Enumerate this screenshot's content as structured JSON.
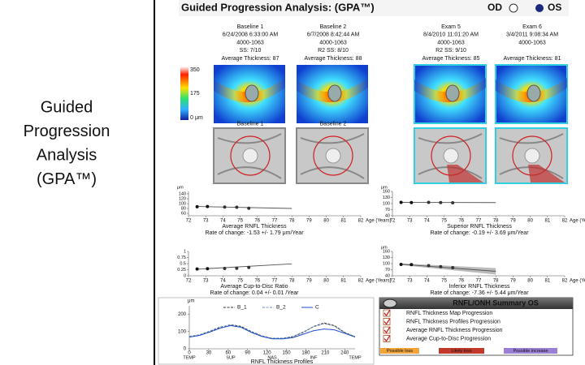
{
  "slide_title": [
    "Guided",
    "Progression",
    "Analysis",
    "(GPA™)"
  ],
  "report": {
    "title": "Guided Progression Analysis: (GPA™)",
    "eye_od": "OD",
    "eye_os": "OS",
    "exams": [
      {
        "label": "Baseline 1",
        "date": "6/24/2008 6:33:00 AM",
        "code": "4000-1063",
        "ss": "SS: 7/10",
        "avg": "Average Thickness: 87"
      },
      {
        "label": "Baseline 2",
        "date": "6/7/2008 8:42:44 AM",
        "code": "4000-1063",
        "ss": "R2  SS: 8/10",
        "avg": "Average Thickness: 88"
      },
      {
        "label": "Exam 5",
        "date": "8/4/2010 11:01:20 AM",
        "code": "4000-1063",
        "ss": "R2  SS: 9/10",
        "avg": "Average Thickness: 85"
      },
      {
        "label": "Exam 6",
        "date": "3/4/2011 9:08:34 AM",
        "code": "4000-1063",
        "avg": "Average Thickness: 81"
      }
    ],
    "scale_labels": [
      "350",
      "175",
      "0",
      "μm"
    ],
    "heatmap_captions": [
      "Baseline 1",
      "Baseline 2"
    ],
    "trends": [
      {
        "title": "Average RNFL Thickness",
        "rate": "Rate of change: -1.53 +/- 1.79 μm/Year",
        "yunit": "μm",
        "ylim": [
          50,
          150
        ],
        "yticks": [
          60,
          80,
          100,
          120,
          140
        ],
        "xlim": [
          72,
          82
        ],
        "xticks": [
          72,
          73,
          74,
          75,
          76,
          77,
          78,
          79,
          80,
          81,
          82
        ],
        "xlabel": "Age (Years)",
        "x": [
          72.5,
          73.1,
          74.1,
          74.8,
          75.5
        ],
        "values": [
          87,
          88,
          86,
          85,
          81
        ],
        "fit_x": [
          72.5,
          78
        ],
        "fit_values": [
          88,
          80
        ]
      },
      {
        "title": "Superior RNFL Thickness",
        "rate": "Rate of change: -0.19 +/- 3.69 μm/Year",
        "yunit": "μm",
        "ylim": [
          40,
          160
        ],
        "yticks": [
          40,
          70,
          100,
          130,
          160
        ],
        "xlim": [
          72,
          82
        ],
        "xticks": [
          72,
          73,
          74,
          75,
          76,
          77,
          78,
          79,
          80,
          81,
          82
        ],
        "xlabel": "Age (Years)",
        "x": [
          72.5,
          73.1,
          74.1,
          74.8,
          75.5
        ],
        "values": [
          106,
          105,
          106,
          105,
          104
        ],
        "fit_x": [
          72.5,
          78
        ],
        "fit_values": [
          106,
          105
        ]
      },
      {
        "title": "Average Cup-to-Disc Ratio",
        "rate": "Rate of change: 0.04 +/- 0.01 /Year",
        "ylim": [
          0,
          1
        ],
        "yticks": [
          0,
          0.25,
          0.5,
          0.75,
          1
        ],
        "xlim": [
          72,
          82
        ],
        "xticks": [
          72,
          73,
          74,
          75,
          76,
          77,
          78,
          79,
          80,
          81,
          82
        ],
        "xlabel": "Age (Years)",
        "x": [
          72.5,
          73.1,
          74.1,
          74.8,
          75.5
        ],
        "values": [
          0.28,
          0.29,
          0.3,
          0.31,
          0.34
        ],
        "fit_x": [
          72.5,
          78
        ],
        "fit_values": [
          0.27,
          0.49
        ]
      },
      {
        "title": "Inferior RNFL Thickness",
        "rate": "Rate of change: -7.36 +/- 5.44 μm/Year",
        "yunit": "μm",
        "ylim": [
          40,
          160
        ],
        "yticks": [
          40,
          70,
          100,
          130,
          160
        ],
        "xlim": [
          72,
          82
        ],
        "xticks": [
          72,
          73,
          74,
          75,
          76,
          77,
          78,
          79,
          80,
          81,
          82
        ],
        "xlabel": "Age (Years)",
        "x": [
          72.5,
          73.1,
          74.1,
          74.8,
          75.5
        ],
        "values": [
          96,
          95,
          90,
          85,
          80
        ],
        "fit_x": [
          72.5,
          78
        ],
        "fit_values": [
          97,
          62
        ]
      }
    ],
    "profile": {
      "title": "RNFL Thickness Profiles",
      "yunit": "μm",
      "ylim": [
        0,
        250
      ],
      "yticks": [
        0,
        100,
        200
      ],
      "xlim": [
        0,
        256
      ],
      "xticks": [
        0,
        30,
        60,
        90,
        120,
        150,
        180,
        210,
        240
      ],
      "region_ticks": [
        {
          "value": 0,
          "label": "TEMP"
        },
        {
          "value": 64,
          "label": "SUP"
        },
        {
          "value": 128,
          "label": "NAS"
        },
        {
          "value": 192,
          "label": "INF"
        },
        {
          "value": 256,
          "label": "TEMP"
        }
      ],
      "x": [
        0,
        16,
        32,
        48,
        64,
        80,
        96,
        112,
        128,
        144,
        160,
        176,
        192,
        208,
        224,
        240,
        256
      ],
      "series": [
        {
          "name": "B_1",
          "color": "#333333",
          "values": [
            70,
            80,
            100,
            125,
            140,
            130,
            100,
            75,
            60,
            60,
            70,
            95,
            130,
            150,
            135,
            95,
            70
          ]
        },
        {
          "name": "B_2",
          "color": "#6f8fb0",
          "values": [
            72,
            82,
            104,
            128,
            138,
            126,
            98,
            74,
            62,
            62,
            72,
            98,
            128,
            146,
            132,
            92,
            72
          ]
        },
        {
          "name": "C",
          "color": "#1f4fd0",
          "values": [
            68,
            78,
            98,
            120,
            135,
            125,
            95,
            72,
            58,
            58,
            65,
            85,
            105,
            115,
            110,
            90,
            68
          ]
        }
      ]
    },
    "summary": {
      "title": "RNFL/ONH Summary OS",
      "items": [
        "RNFL Thickness Map Progression",
        "RNFL Thickness Profiles Progression",
        "Average RNFL Thickness Progression",
        "Average Cup-to-Disc Progression"
      ],
      "chips": [
        {
          "label": "Possible loss",
          "color": "#f2a33a"
        },
        {
          "label": "Likely loss",
          "color": "#c0392b"
        },
        {
          "label": "Possible increase",
          "color": "#9b7fd6"
        }
      ]
    }
  }
}
